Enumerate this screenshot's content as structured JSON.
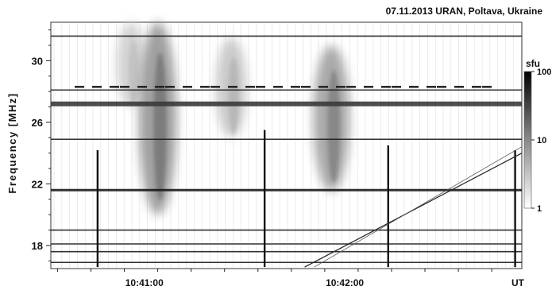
{
  "chart_data": {
    "type": "heatmap",
    "title": "07.11.2013  URAN, Poltava, Ukraine",
    "ylabel": "Frequency [MHz]",
    "x_unit_label": "UT",
    "x_ticks": [
      "10:41:00",
      "10:42:00"
    ],
    "y_ticks": [
      18,
      22,
      26,
      30
    ],
    "xlim": [
      "10:40:32",
      "10:42:53"
    ],
    "ylim": [
      16.5,
      32.5
    ],
    "colorbar": {
      "label": "sfu",
      "scale": "log",
      "range": [
        1,
        100
      ],
      "ticks": [
        1,
        10,
        100
      ]
    },
    "bursts": [
      {
        "time": "10:40:56",
        "f_low": 27,
        "f_high": 32.5,
        "intensity": 0.25
      },
      {
        "time": "10:41:04",
        "f_low": 20,
        "f_high": 32.5,
        "intensity": 0.55
      },
      {
        "time": "10:41:26",
        "f_low": 25,
        "f_high": 31.5,
        "intensity": 0.3
      },
      {
        "time": "10:41:56",
        "f_low": 21.5,
        "f_high": 31,
        "intensity": 0.5
      }
    ],
    "horizontal_bands_mhz": [
      31.6,
      28.1,
      27.2,
      24.9,
      21.6,
      19.0,
      18.1,
      17.6,
      16.9
    ],
    "vertical_spikes": [
      {
        "time": "10:40:46",
        "f_low": 16.6,
        "f_high": 24.2
      },
      {
        "time": "10:41:36",
        "f_low": 16.6,
        "f_high": 25.5
      },
      {
        "time": "10:42:13",
        "f_low": 16.6,
        "f_high": 24.5
      },
      {
        "time": "10:42:51",
        "f_low": 16.6,
        "f_high": 24.2
      }
    ],
    "drift_lines": [
      {
        "t_start": "10:41:48",
        "f_start": 16.6,
        "t_end": "10:42:53",
        "f_end": 24.0
      }
    ]
  }
}
